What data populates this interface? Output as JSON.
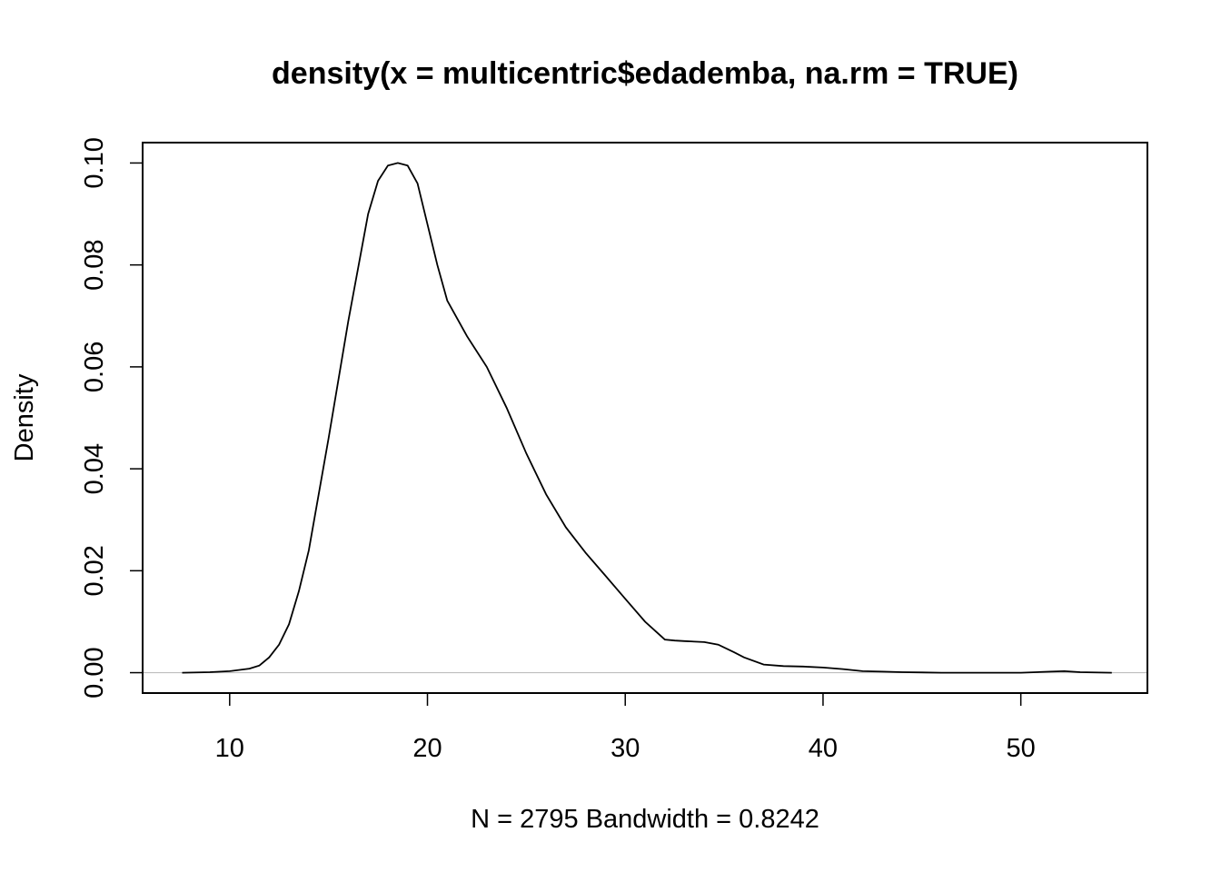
{
  "chart_data": {
    "type": "line",
    "title": "density(x = multicentric$edademba, na.rm = TRUE)",
    "xlabel": "N = 2795   Bandwidth = 0.8242",
    "ylabel": "Density",
    "xlim": [
      5.6,
      56.4
    ],
    "ylim": [
      -0.004,
      0.104
    ],
    "x_ticks": [
      10,
      20,
      30,
      40,
      50
    ],
    "x_tick_labels": [
      "10",
      "20",
      "30",
      "40",
      "50"
    ],
    "y_ticks": [
      0.0,
      0.02,
      0.04,
      0.06,
      0.08,
      0.1
    ],
    "y_tick_labels": [
      "0.00",
      "0.02",
      "0.04",
      "0.06",
      "0.08",
      "0.10"
    ],
    "baseline": 0,
    "grid": false,
    "colors": {
      "line": "#000000",
      "baseline": "#bebebe",
      "axes": "#000000"
    },
    "series": [
      {
        "x": [
          7.6,
          9.0,
          10.0,
          11.0,
          11.5,
          12.0,
          12.5,
          13.0,
          13.5,
          14.0,
          15.0,
          16.0,
          17.0,
          17.5,
          18.0,
          18.5,
          19.0,
          19.5,
          20.0,
          20.5,
          21.0,
          21.5,
          22.0,
          23.0,
          24.0,
          25.0,
          26.0,
          27.0,
          28.0,
          29.0,
          30.0,
          31.0,
          32.0,
          32.5,
          33.0,
          34.0,
          34.7,
          35.5,
          36.0,
          37.0,
          38.0,
          39.0,
          40.0,
          41.0,
          42.0,
          43.0,
          44.0,
          46.0,
          48.0,
          50.0,
          51.5,
          52.2,
          53.0,
          54.6
        ],
        "y": [
          0.0,
          0.0001,
          0.0003,
          0.0008,
          0.0014,
          0.003,
          0.0055,
          0.0095,
          0.016,
          0.024,
          0.046,
          0.069,
          0.09,
          0.0965,
          0.0995,
          0.1,
          0.0995,
          0.096,
          0.088,
          0.08,
          0.073,
          0.0695,
          0.066,
          0.06,
          0.052,
          0.043,
          0.035,
          0.0285,
          0.0235,
          0.019,
          0.0145,
          0.01,
          0.0065,
          0.0063,
          0.0062,
          0.006,
          0.0055,
          0.004,
          0.003,
          0.0016,
          0.0013,
          0.0012,
          0.001,
          0.0007,
          0.0003,
          0.0002,
          0.0001,
          0.0,
          0.0,
          0.0,
          0.0002,
          0.0003,
          0.0001,
          0.0
        ]
      }
    ]
  }
}
